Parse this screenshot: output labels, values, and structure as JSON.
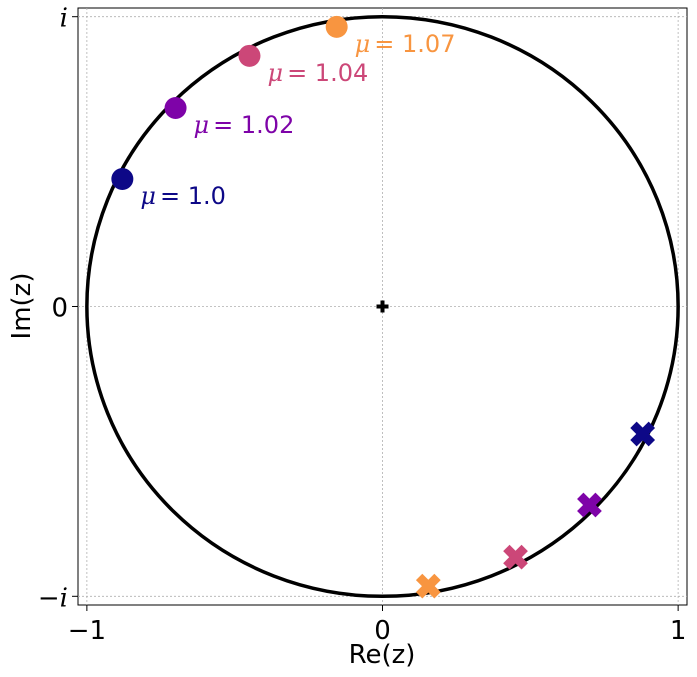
{
  "chart_data": {
    "type": "scatter",
    "title": "",
    "xlabel": "Re(z)",
    "ylabel": "Im(z)",
    "xlim": [
      -1.03,
      1.03
    ],
    "ylim": [
      -1.03,
      1.03
    ],
    "grid": true,
    "x_ticks": [
      {
        "value": -1,
        "label": "−1"
      },
      {
        "value": 0,
        "label": "0"
      },
      {
        "value": 1,
        "label": "1"
      }
    ],
    "y_ticks": [
      {
        "value": 1,
        "label": "i"
      },
      {
        "value": 0,
        "label": "0"
      },
      {
        "value": -1,
        "label": "−i"
      }
    ],
    "unit_circle": {
      "center": [
        0,
        0
      ],
      "radius": 1,
      "color": "#000000"
    },
    "origin_marker": {
      "x": 0,
      "y": 0,
      "symbol": "plus",
      "color": "#000000"
    },
    "series": [
      {
        "label": "μ = 1.0",
        "label_prefix": "μ",
        "label_value": "= 1.0",
        "color": "#0d0887",
        "circle": {
          "x": -0.88,
          "y": 0.44
        },
        "cross": {
          "x": 0.88,
          "y": -0.44
        }
      },
      {
        "label": "μ = 1.02",
        "label_prefix": "μ",
        "label_value": "= 1.02",
        "color": "#7e03a8",
        "circle": {
          "x": -0.7,
          "y": 0.685
        },
        "cross": {
          "x": 0.7,
          "y": -0.685
        }
      },
      {
        "label": "μ = 1.04",
        "label_prefix": "μ",
        "label_value": "= 1.04",
        "color": "#cc4778",
        "circle": {
          "x": -0.45,
          "y": 0.865
        },
        "cross": {
          "x": 0.45,
          "y": -0.865
        }
      },
      {
        "label": "μ = 1.07",
        "label_prefix": "μ",
        "label_value": "= 1.07",
        "color": "#f89540",
        "circle": {
          "x": -0.155,
          "y": 0.965
        },
        "cross": {
          "x": 0.155,
          "y": -0.965
        }
      }
    ]
  }
}
